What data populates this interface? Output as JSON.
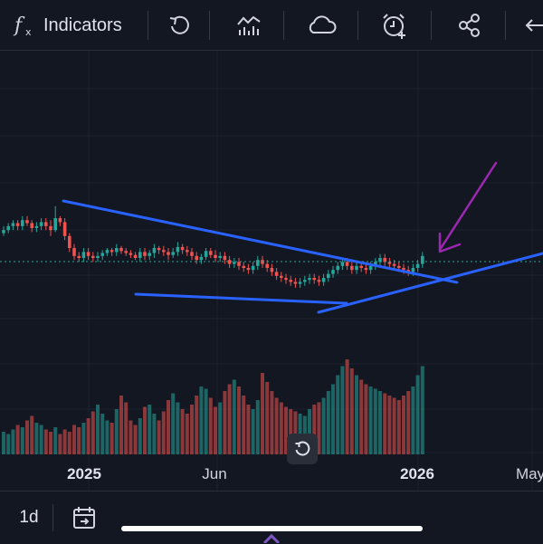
{
  "toolbar": {
    "indicators_label": "Indicators",
    "icons": [
      "fx-icon",
      "undo-icon",
      "compare-icon",
      "cloud-icon",
      "alert-clock-icon",
      "share-icon",
      "back-arrow-icon"
    ]
  },
  "chart": {
    "x_labels": [
      {
        "text": "2025",
        "bold": true
      },
      {
        "text": "Jun",
        "bold": false
      },
      {
        "text": "2026",
        "bold": true
      },
      {
        "text": "May",
        "bold": false
      }
    ]
  },
  "chart_data": {
    "type": "candlestick",
    "series": [
      {
        "name": "price",
        "candles": [
          [
            0,
            255,
            258,
            252,
            262
          ],
          [
            1,
            258,
            262,
            255,
            265
          ],
          [
            2,
            262,
            265,
            258,
            268
          ],
          [
            3,
            265,
            262,
            258,
            268
          ],
          [
            4,
            262,
            268,
            258,
            272
          ],
          [
            5,
            268,
            265,
            262,
            272
          ],
          [
            6,
            265,
            260,
            256,
            268
          ],
          [
            7,
            260,
            262,
            256,
            266
          ],
          [
            8,
            262,
            266,
            258,
            270
          ],
          [
            9,
            266,
            262,
            258,
            270
          ],
          [
            10,
            262,
            258,
            252,
            268
          ],
          [
            11,
            258,
            270,
            256,
            282
          ],
          [
            12,
            270,
            266,
            262,
            272
          ],
          [
            13,
            266,
            252,
            248,
            270
          ],
          [
            14,
            252,
            240,
            236,
            255
          ],
          [
            15,
            240,
            232,
            228,
            244
          ],
          [
            16,
            232,
            230,
            226,
            236
          ],
          [
            17,
            230,
            236,
            226,
            240
          ],
          [
            18,
            236,
            232,
            228,
            240
          ],
          [
            19,
            232,
            230,
            226,
            236
          ],
          [
            20,
            230,
            232,
            226,
            236
          ],
          [
            21,
            232,
            235,
            228,
            238
          ],
          [
            22,
            235,
            238,
            232,
            240
          ],
          [
            23,
            238,
            236,
            232,
            240
          ],
          [
            24,
            236,
            240,
            232,
            244
          ],
          [
            25,
            240,
            237,
            234,
            242
          ],
          [
            26,
            237,
            235,
            232,
            240
          ],
          [
            27,
            235,
            233,
            230,
            238
          ],
          [
            28,
            233,
            230,
            228,
            236
          ],
          [
            29,
            230,
            236,
            226,
            240
          ],
          [
            30,
            236,
            232,
            228,
            240
          ],
          [
            31,
            232,
            235,
            228,
            238
          ],
          [
            32,
            235,
            240,
            230,
            244
          ],
          [
            33,
            240,
            238,
            234,
            242
          ],
          [
            34,
            238,
            236,
            232,
            242
          ],
          [
            35,
            236,
            233,
            228,
            240
          ],
          [
            36,
            233,
            236,
            230,
            240
          ],
          [
            37,
            236,
            241,
            232,
            246
          ],
          [
            38,
            241,
            238,
            234,
            244
          ],
          [
            39,
            238,
            236,
            232,
            242
          ],
          [
            40,
            236,
            232,
            228,
            240
          ],
          [
            41,
            232,
            228,
            224,
            236
          ],
          [
            42,
            228,
            231,
            224,
            234
          ],
          [
            43,
            231,
            237,
            228,
            240
          ],
          [
            44,
            237,
            233,
            230,
            240
          ],
          [
            45,
            233,
            230,
            226,
            238
          ],
          [
            46,
            230,
            232,
            226,
            236
          ],
          [
            47,
            232,
            228,
            224,
            236
          ],
          [
            48,
            228,
            224,
            220,
            232
          ],
          [
            49,
            224,
            226,
            220,
            230
          ],
          [
            50,
            226,
            222,
            218,
            230
          ],
          [
            51,
            222,
            220,
            216,
            226
          ],
          [
            52,
            220,
            218,
            214,
            224
          ],
          [
            53,
            218,
            222,
            214,
            226
          ],
          [
            54,
            222,
            228,
            218,
            232
          ],
          [
            55,
            228,
            224,
            220,
            232
          ],
          [
            56,
            224,
            220,
            216,
            228
          ],
          [
            57,
            220,
            216,
            212,
            224
          ],
          [
            58,
            216,
            212,
            208,
            220
          ],
          [
            59,
            212,
            210,
            206,
            216
          ],
          [
            60,
            210,
            208,
            204,
            214
          ],
          [
            61,
            208,
            206,
            202,
            212
          ],
          [
            62,
            206,
            204,
            200,
            210
          ],
          [
            63,
            204,
            206,
            200,
            210
          ],
          [
            64,
            206,
            208,
            202,
            212
          ],
          [
            65,
            208,
            210,
            204,
            214
          ],
          [
            66,
            210,
            208,
            204,
            214
          ],
          [
            67,
            208,
            206,
            202,
            212
          ],
          [
            68,
            206,
            210,
            202,
            214
          ],
          [
            69,
            210,
            214,
            206,
            218
          ],
          [
            70,
            214,
            218,
            210,
            222
          ],
          [
            71,
            218,
            222,
            214,
            226
          ],
          [
            72,
            222,
            226,
            218,
            230
          ],
          [
            73,
            226,
            222,
            218,
            230
          ],
          [
            74,
            222,
            218,
            214,
            226
          ],
          [
            75,
            218,
            222,
            214,
            226
          ],
          [
            76,
            222,
            220,
            216,
            226
          ],
          [
            77,
            220,
            218,
            214,
            224
          ],
          [
            78,
            218,
            222,
            214,
            226
          ],
          [
            79,
            222,
            226,
            218,
            230
          ],
          [
            80,
            226,
            230,
            222,
            234
          ],
          [
            81,
            230,
            226,
            222,
            234
          ],
          [
            82,
            226,
            224,
            220,
            230
          ],
          [
            83,
            224,
            222,
            218,
            228
          ],
          [
            84,
            222,
            220,
            216,
            226
          ],
          [
            85,
            220,
            218,
            214,
            224
          ],
          [
            86,
            218,
            216,
            212,
            222
          ],
          [
            87,
            216,
            220,
            212,
            224
          ],
          [
            88,
            220,
            224,
            216,
            228
          ],
          [
            89,
            224,
            232,
            220,
            236
          ]
        ]
      },
      {
        "name": "volume",
        "values": [
          20,
          18,
          22,
          26,
          24,
          30,
          34,
          28,
          26,
          22,
          20,
          24,
          18,
          22,
          20,
          26,
          24,
          28,
          32,
          38,
          44,
          36,
          30,
          28,
          40,
          52,
          46,
          30,
          26,
          32,
          42,
          44,
          36,
          30,
          38,
          48,
          54,
          46,
          40,
          36,
          44,
          52,
          60,
          58,
          50,
          42,
          46,
          56,
          62,
          66,
          60,
          52,
          44,
          40,
          48,
          72,
          64,
          56,
          50,
          46,
          42,
          40,
          38,
          36,
          34,
          40,
          44,
          46,
          50,
          56,
          62,
          70,
          78,
          84,
          76,
          70,
          66,
          62,
          60,
          58,
          56,
          54,
          52,
          50,
          48,
          52,
          56,
          60,
          70,
          78
        ]
      }
    ],
    "trendlines": [
      {
        "color": "#2962ff",
        "label": "upper"
      },
      {
        "color": "#2962ff",
        "label": "lower"
      },
      {
        "color": "#2962ff",
        "label": "rising"
      }
    ],
    "annotation": {
      "type": "arrow",
      "color": "#9c27b0"
    },
    "price_line": "dotted"
  }
}
